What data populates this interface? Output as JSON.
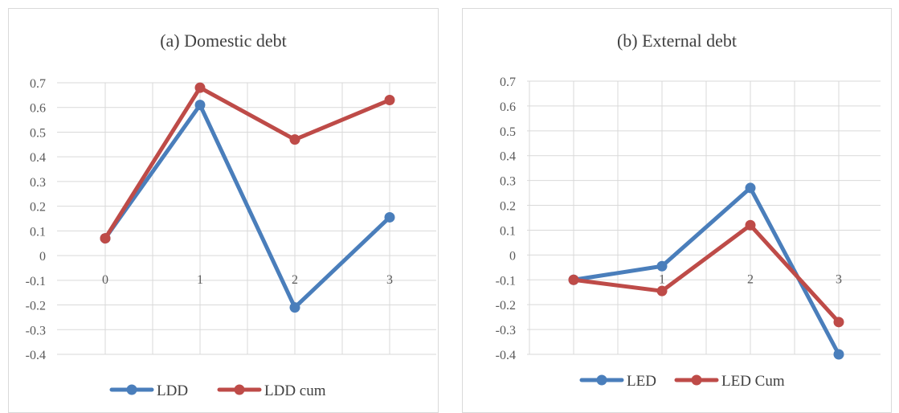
{
  "chart_data": [
    {
      "type": "line",
      "title": "(a) Domestic debt",
      "categories": [
        "0",
        "1",
        "2",
        "3"
      ],
      "ylim": [
        -0.4,
        0.7
      ],
      "yticks": [
        "0.7",
        "0.6",
        "0.5",
        "0.4",
        "0.3",
        "0.2",
        "0.1",
        "0",
        "-0.1",
        "-0.2",
        "-0.3",
        "-0.4"
      ],
      "grid": true,
      "legend_position": "bottom",
      "series": [
        {
          "name": "LDD",
          "color": "#4a7ebb",
          "values": [
            0.07,
            0.61,
            -0.21,
            0.155
          ]
        },
        {
          "name": "LDD cum",
          "color": "#be4b48",
          "values": [
            0.07,
            0.68,
            0.47,
            0.63
          ]
        }
      ]
    },
    {
      "type": "line",
      "title": "(b) External  debt",
      "categories": [
        "0",
        "1",
        "2",
        "3"
      ],
      "ylim": [
        -0.4,
        0.7
      ],
      "yticks": [
        "0.7",
        "0.6",
        "0.5",
        "0.4",
        "0.3",
        "0.2",
        "0.1",
        "0",
        "-0.1",
        "-0.2",
        "-0.3",
        "-0.4"
      ],
      "grid": true,
      "legend_position": "bottom",
      "series": [
        {
          "name": "LED",
          "color": "#4a7ebb",
          "values": [
            -0.1,
            -0.045,
            0.27,
            -0.4
          ]
        },
        {
          "name": "LED Cum",
          "color": "#be4b48",
          "values": [
            -0.1,
            -0.145,
            0.12,
            -0.27
          ]
        }
      ]
    }
  ]
}
